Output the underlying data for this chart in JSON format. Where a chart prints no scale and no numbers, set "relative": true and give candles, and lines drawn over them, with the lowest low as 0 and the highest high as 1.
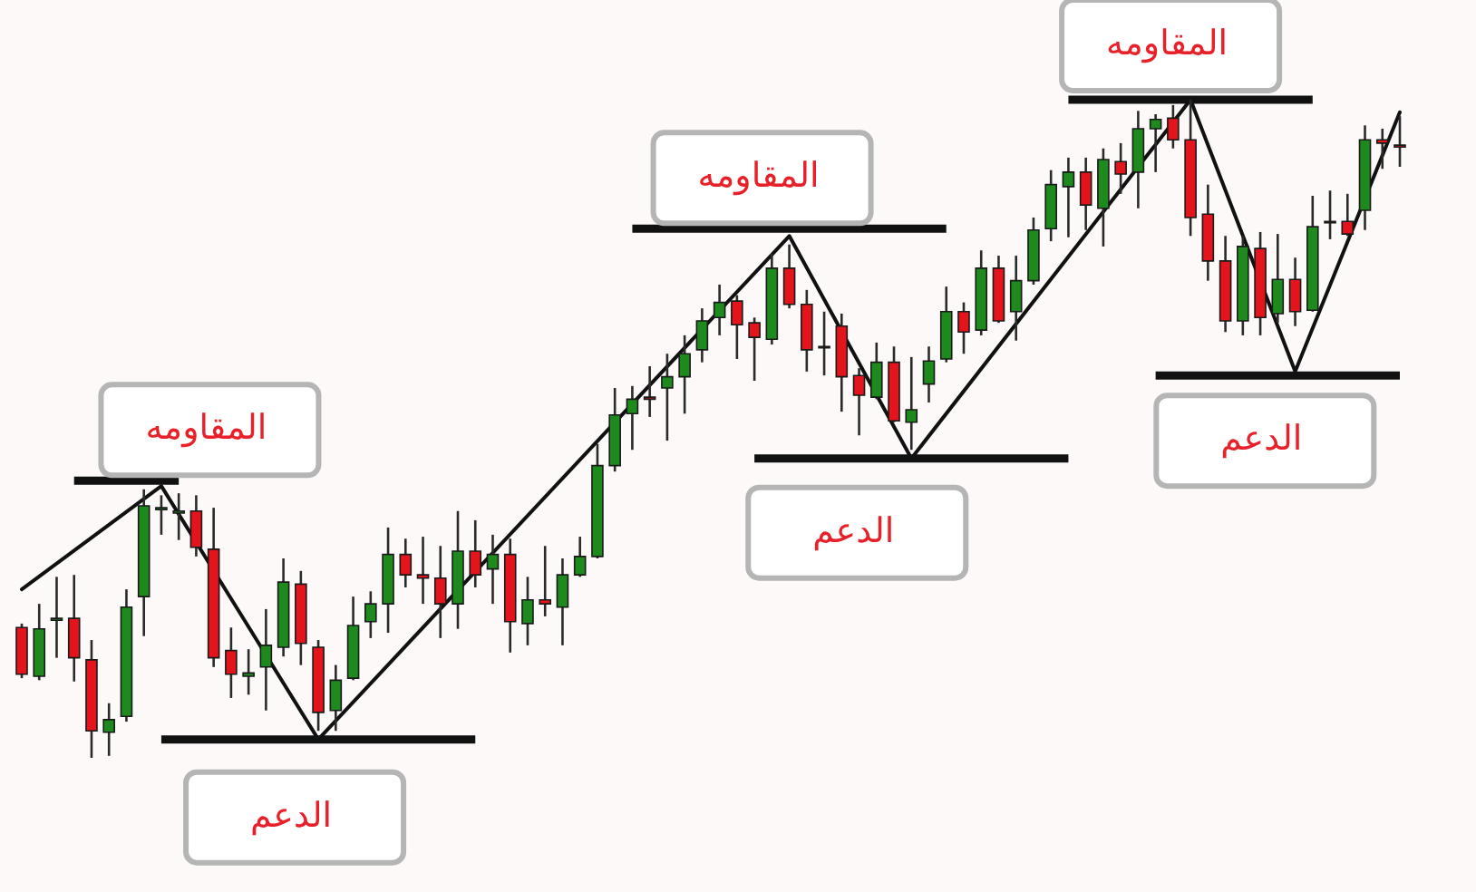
{
  "chart_data": {
    "type": "candlestick",
    "relative": true,
    "categories": [
      null,
      null,
      null,
      null,
      null,
      null,
      null,
      null,
      null,
      null,
      null,
      null,
      null,
      null,
      null,
      null,
      null,
      null,
      null,
      null,
      null,
      null,
      null,
      null,
      null,
      null,
      null,
      null,
      null,
      null,
      null,
      null,
      null,
      null,
      null,
      null,
      null,
      null,
      null,
      null,
      null,
      null,
      null,
      null,
      null,
      null,
      null,
      null,
      null,
      null,
      null,
      null,
      null,
      null,
      null,
      null,
      null,
      null,
      null,
      null,
      null,
      null,
      null,
      null,
      null,
      null,
      null,
      null,
      null,
      null,
      null,
      null,
      null,
      null,
      null,
      null,
      null,
      null,
      null,
      null
    ],
    "ohlc": [
      [
        0.198,
        0.204,
        0.121,
        0.127
      ],
      [
        0.124,
        0.234,
        0.118,
        0.196
      ],
      [
        0.209,
        0.275,
        0.152,
        0.212
      ],
      [
        0.212,
        0.278,
        0.116,
        0.152
      ],
      [
        0.149,
        0.179,
        0,
        0.041
      ],
      [
        0.039,
        0.083,
        0.003,
        0.058
      ],
      [
        0.063,
        0.256,
        0.055,
        0.229
      ],
      [
        0.245,
        0.408,
        0.185,
        0.383
      ],
      [
        0.377,
        0.399,
        0.339,
        0.38
      ],
      [
        0.372,
        0.402,
        0.331,
        0.375
      ],
      [
        0.375,
        0.399,
        0.306,
        0.32
      ],
      [
        0.317,
        0.38,
        0.138,
        0.152
      ],
      [
        0.163,
        0.198,
        0.091,
        0.127
      ],
      [
        0.124,
        0.165,
        0.096,
        0.129
      ],
      [
        0.138,
        0.226,
        0.072,
        0.171
      ],
      [
        0.168,
        0.303,
        0.154,
        0.267
      ],
      [
        0.264,
        0.284,
        0.141,
        0.174
      ],
      [
        0.168,
        0.179,
        0.041,
        0.069
      ],
      [
        0.072,
        0.141,
        0.041,
        0.118
      ],
      [
        0.121,
        0.245,
        0.118,
        0.201
      ],
      [
        0.207,
        0.253,
        0.182,
        0.234
      ],
      [
        0.234,
        0.35,
        0.19,
        0.309
      ],
      [
        0.309,
        0.333,
        0.259,
        0.278
      ],
      [
        0.278,
        0.336,
        0.234,
        0.273
      ],
      [
        0.273,
        0.322,
        0.182,
        0.234
      ],
      [
        0.234,
        0.375,
        0.196,
        0.314
      ],
      [
        0.314,
        0.361,
        0.259,
        0.278
      ],
      [
        0.287,
        0.339,
        0.234,
        0.309
      ],
      [
        0.309,
        0.333,
        0.16,
        0.207
      ],
      [
        0.204,
        0.275,
        0.171,
        0.24
      ],
      [
        0.24,
        0.322,
        0.215,
        0.234
      ],
      [
        0.229,
        0.303,
        0.171,
        0.278
      ],
      [
        0.278,
        0.336,
        0.275,
        0.306
      ],
      [
        0.306,
        0.477,
        0.303,
        0.444
      ],
      [
        0.444,
        0.562,
        0.435,
        0.521
      ],
      [
        0.523,
        0.565,
        0.468,
        0.545
      ],
      [
        0.548,
        0.595,
        0.518,
        0.545
      ],
      [
        0.562,
        0.614,
        0.482,
        0.579
      ],
      [
        0.579,
        0.642,
        0.523,
        0.614
      ],
      [
        0.62,
        0.683,
        0.601,
        0.664
      ],
      [
        0.669,
        0.719,
        0.642,
        0.692
      ],
      [
        0.694,
        0.703,
        0.606,
        0.658
      ],
      [
        0.661,
        0.669,
        0.573,
        0.639
      ],
      [
        0.636,
        0.766,
        0.628,
        0.744
      ],
      [
        0.744,
        0.78,
        0.683,
        0.689
      ],
      [
        0.689,
        0.711,
        0.587,
        0.62
      ],
      [
        0.625,
        0.678,
        0.581,
        0.623
      ],
      [
        0.656,
        0.675,
        0.526,
        0.579
      ],
      [
        0.581,
        0.592,
        0.49,
        0.551
      ],
      [
        0.548,
        0.631,
        0.545,
        0.601
      ],
      [
        0.601,
        0.625,
        0.51,
        0.512
      ],
      [
        0.51,
        0.609,
        0.468,
        0.529
      ],
      [
        0.568,
        0.625,
        0.54,
        0.603
      ],
      [
        0.606,
        0.716,
        0.601,
        0.678
      ],
      [
        0.678,
        0.692,
        0.614,
        0.647
      ],
      [
        0.65,
        0.771,
        0.642,
        0.744
      ],
      [
        0.744,
        0.763,
        0.661,
        0.664
      ],
      [
        0.678,
        0.763,
        0.634,
        0.725
      ],
      [
        0.725,
        0.821,
        0.719,
        0.802
      ],
      [
        0.804,
        0.893,
        0.785,
        0.871
      ],
      [
        0.868,
        0.912,
        0.791,
        0.89
      ],
      [
        0.89,
        0.912,
        0.802,
        0.84
      ],
      [
        0.835,
        0.926,
        0.777,
        0.909
      ],
      [
        0.906,
        0.934,
        0.857,
        0.887
      ],
      [
        0.89,
        0.983,
        0.835,
        0.956
      ],
      [
        0.956,
        0.978,
        0.89,
        0.97
      ],
      [
        0.972,
        0.992,
        0.926,
        0.939
      ],
      [
        0.939,
        1,
        0.793,
        0.821
      ],
      [
        0.826,
        0.871,
        0.725,
        0.755
      ],
      [
        0.755,
        0.793,
        0.647,
        0.664
      ],
      [
        0.664,
        0.793,
        0.642,
        0.777
      ],
      [
        0.774,
        0.799,
        0.642,
        0.669
      ],
      [
        0.675,
        0.796,
        0.661,
        0.727
      ],
      [
        0.727,
        0.76,
        0.656,
        0.678
      ],
      [
        0.68,
        0.854,
        0.678,
        0.807
      ],
      [
        0.813,
        0.862,
        0.788,
        0.815
      ],
      [
        0.815,
        0.857,
        0.793,
        0.796
      ],
      [
        0.832,
        0.961,
        0.802,
        0.939
      ],
      [
        0.939,
        0.956,
        0.895,
        0.934
      ],
      [
        0.931,
        0.975,
        0.898,
        0.928
      ]
    ],
    "series": [
      {
        "type": "line",
        "color": "#111111",
        "values": [
          0.256,
          null,
          null,
          null,
          null,
          null,
          null,
          null,
          0.413,
          null,
          null,
          null,
          null,
          null,
          null,
          null,
          null,
          0.028,
          null,
          null,
          null,
          null,
          null,
          null,
          null,
          null,
          null,
          null,
          null,
          null,
          null,
          null,
          null,
          null,
          null,
          null,
          null,
          null,
          null,
          null,
          null,
          null,
          null,
          null,
          0.793,
          null,
          null,
          null,
          null,
          null,
          null,
          0.455,
          null,
          null,
          null,
          null,
          null,
          null,
          null,
          null,
          null,
          null,
          null,
          null,
          null,
          null,
          null,
          1,
          null,
          null,
          null,
          null,
          null,
          0.587,
          null,
          null,
          null,
          null,
          null,
          0.981
        ]
      },
      {
        "type": "line",
        "color": "#111111",
        "values": [
          null,
          null,
          null,
          0.421,
          null,
          null,
          null,
          null,
          null,
          0.421,
          null,
          null,
          null,
          null,
          null,
          null,
          null,
          null,
          null,
          null,
          null,
          null,
          null,
          null,
          null,
          null,
          null,
          null,
          null,
          null,
          null,
          null,
          null,
          null,
          null,
          null,
          null,
          null,
          null,
          null,
          null,
          null,
          null,
          null,
          null,
          null,
          null,
          null,
          null,
          null,
          null,
          null,
          null,
          null,
          null,
          null,
          null,
          null,
          null,
          null,
          null,
          null,
          null,
          null,
          null,
          null,
          null,
          null,
          null,
          null,
          null,
          null,
          null,
          null,
          null,
          null,
          null,
          null,
          null,
          null
        ]
      },
      {
        "type": "line",
        "color": "#111111",
        "values": [
          null,
          null,
          null,
          null,
          null,
          null,
          null,
          null,
          0.028,
          null,
          null,
          null,
          null,
          null,
          null,
          null,
          null,
          null,
          null,
          null,
          null,
          null,
          null,
          null,
          null,
          null,
          0.028,
          null,
          null,
          null,
          null,
          null,
          null,
          null,
          null,
          null,
          null,
          null,
          null,
          null,
          null,
          null,
          null,
          null,
          null,
          null,
          null,
          null,
          null,
          null,
          null,
          null,
          null,
          null,
          null,
          null,
          null,
          null,
          null,
          null,
          null,
          null,
          null,
          null,
          null,
          null,
          null,
          null,
          null,
          null,
          null,
          null,
          null,
          null,
          null,
          null,
          null,
          null,
          null,
          null
        ]
      },
      {
        "type": "line",
        "color": "#111111",
        "values": [
          null,
          null,
          null,
          null,
          null,
          null,
          null,
          null,
          null,
          null,
          null,
          null,
          null,
          null,
          null,
          null,
          null,
          null,
          null,
          null,
          null,
          null,
          null,
          null,
          null,
          null,
          null,
          null,
          null,
          null,
          null,
          null,
          null,
          null,
          null,
          0.804,
          null,
          null,
          null,
          null,
          null,
          null,
          null,
          null,
          null,
          null,
          null,
          null,
          null,
          null,
          null,
          null,
          null,
          0.804,
          null,
          null,
          null,
          null,
          null,
          null,
          null,
          null,
          null,
          null,
          null,
          null,
          null,
          null,
          null,
          null,
          null,
          null,
          null,
          null,
          null,
          null,
          null,
          null,
          null,
          null
        ]
      },
      {
        "type": "line",
        "color": "#111111",
        "values": [
          null,
          null,
          null,
          null,
          null,
          null,
          null,
          null,
          null,
          null,
          null,
          null,
          null,
          null,
          null,
          null,
          null,
          null,
          null,
          null,
          null,
          null,
          null,
          null,
          null,
          null,
          null,
          null,
          null,
          null,
          null,
          null,
          null,
          null,
          null,
          null,
          null,
          null,
          null,
          null,
          null,
          null,
          0.455,
          null,
          null,
          null,
          null,
          null,
          null,
          null,
          null,
          null,
          null,
          null,
          null,
          null,
          null,
          null,
          null,
          null,
          0.455,
          null,
          null,
          null,
          null,
          null,
          null,
          null,
          null,
          null,
          null,
          null,
          null,
          null,
          null,
          null,
          null,
          null,
          null,
          null
        ]
      },
      {
        "type": "line",
        "color": "#111111",
        "values": [
          null,
          null,
          null,
          null,
          null,
          null,
          null,
          null,
          null,
          null,
          null,
          null,
          null,
          null,
          null,
          null,
          null,
          null,
          null,
          null,
          null,
          null,
          null,
          null,
          null,
          null,
          null,
          null,
          null,
          null,
          null,
          null,
          null,
          null,
          null,
          null,
          null,
          null,
          null,
          null,
          null,
          null,
          null,
          null,
          null,
          null,
          null,
          null,
          null,
          null,
          null,
          null,
          null,
          null,
          null,
          null,
          null,
          null,
          null,
          null,
          1,
          null,
          null,
          null,
          null,
          null,
          null,
          null,
          null,
          null,
          null,
          null,
          null,
          null,
          1,
          null,
          null,
          null,
          null,
          null
        ]
      },
      {
        "type": "line",
        "color": "#111111",
        "values": [
          null,
          null,
          null,
          null,
          null,
          null,
          null,
          null,
          null,
          null,
          null,
          null,
          null,
          null,
          null,
          null,
          null,
          null,
          null,
          null,
          null,
          null,
          null,
          null,
          null,
          null,
          null,
          null,
          null,
          null,
          null,
          null,
          null,
          null,
          null,
          null,
          null,
          null,
          null,
          null,
          null,
          null,
          null,
          null,
          null,
          null,
          null,
          null,
          null,
          null,
          null,
          null,
          null,
          null,
          null,
          null,
          null,
          null,
          null,
          null,
          null,
          null,
          null,
          null,
          null,
          0.581,
          null,
          null,
          null,
          null,
          null,
          null,
          null,
          null,
          null,
          null,
          null,
          null,
          null,
          0.581
        ]
      }
    ],
    "annotations": [
      "المقاومه",
      "الدعم",
      "المقاومه",
      "الدعم",
      "المقاومه",
      "الدعم"
    ]
  }
}
